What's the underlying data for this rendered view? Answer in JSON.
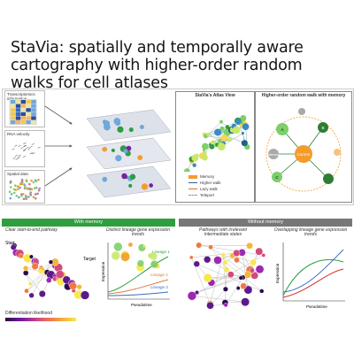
{
  "title": "StaVia: spatially and temporally aware cartography with higher-order random walks for cell atlases",
  "inputs": {
    "transcriptomics": "Transcriptomics information",
    "rna_velocity": "RNA velocity",
    "spatial": "Spatial data"
  },
  "atlas_label": "StaVia's Atlas View",
  "hor_label": "Higher-order random walk with memory",
  "legend": {
    "memory": "Memory",
    "higher_walk": "Higher walk",
    "lazy_walk": "Lazy walk",
    "teleport": "Teleport"
  },
  "nodes": {
    "memory": "Memory",
    "node_a": "A",
    "node_b": "B",
    "node_c": "C",
    "current": "Current"
  },
  "with_memory": {
    "header": "With memory",
    "caption_left": "Clear start-to-end pathway",
    "caption_right": "Distinct lineage gene expression trends",
    "start": "Start",
    "target": "Target",
    "lineages": [
      "Lineage 1",
      "Lineage 2",
      "Lineage 3"
    ],
    "xlabel": "Pseudotime",
    "ylabel": "Expression",
    "scale_label": "Differentiation likelihood"
  },
  "without_memory": {
    "header": "Without memory",
    "caption_left": "Pathways with irrelevant intermediate states",
    "caption_right": "Overlapping lineage gene expression trends",
    "xlabel": "Pseudotime",
    "ylabel": "Expression"
  },
  "colors": {
    "green": "#2e9e3e",
    "gray": "#777777",
    "node_green": "#7dcf6a",
    "node_orange": "#f39c2c"
  }
}
